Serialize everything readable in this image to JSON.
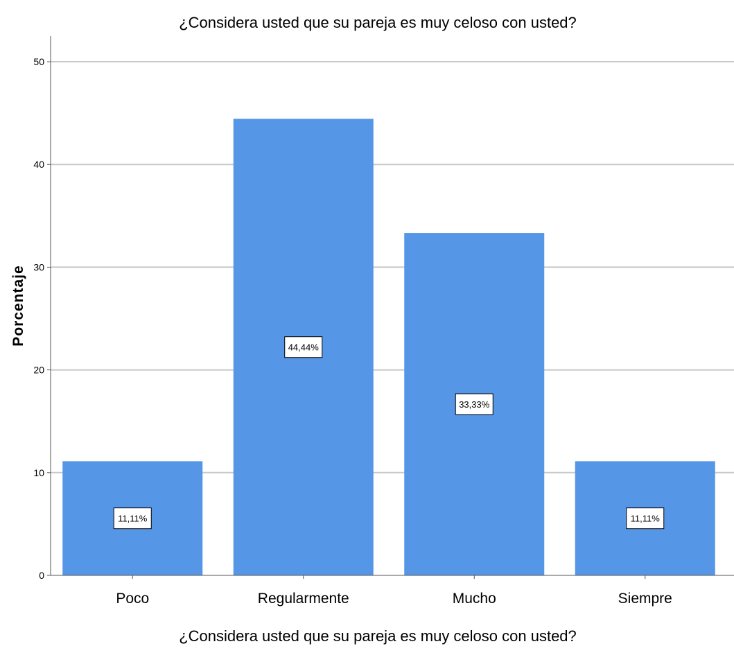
{
  "chart_data": {
    "type": "bar",
    "title": "¿Considera usted que su pareja es muy celoso con usted?",
    "xlabel": "¿Considera usted que su pareja es muy celoso con usted?",
    "ylabel": "Porcentaje",
    "categories": [
      "Poco",
      "Regularmente",
      "Mucho",
      "Siempre"
    ],
    "values": [
      11.11,
      44.44,
      33.33,
      11.11
    ],
    "data_labels": [
      "11,11%",
      "44,44%",
      "33,33%",
      "11,11%"
    ],
    "ylim": [
      0,
      52.5
    ],
    "yticks": [
      0,
      10,
      20,
      30,
      40,
      50
    ],
    "ytick_labels": [
      "0",
      "10",
      "20",
      "30",
      "40",
      "50"
    ],
    "grid": true,
    "bar_color": "#5596e6",
    "grid_color": "#c8c8c8"
  }
}
